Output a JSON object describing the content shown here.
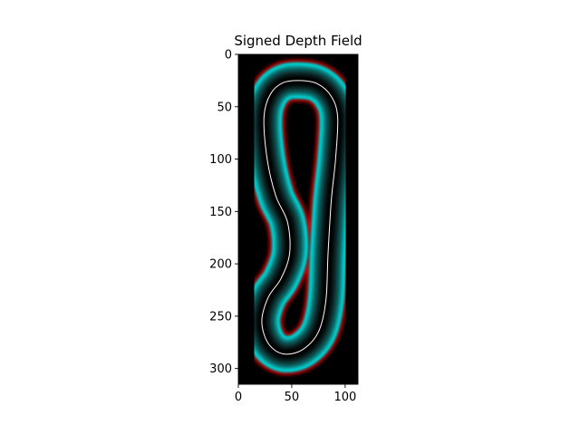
{
  "chart_data": {
    "type": "heatmap",
    "title": "Signed Depth Field",
    "xlabel": "",
    "ylabel": "",
    "xlim": [
      0,
      112
    ],
    "ylim": [
      315,
      0
    ],
    "y_axis_inverted": true,
    "x_ticks": [
      0,
      50,
      100
    ],
    "y_ticks": [
      0,
      50,
      100,
      150,
      200,
      250,
      300
    ],
    "grid": false,
    "legend": "none",
    "colors": {
      "background": "#000000",
      "outer_edge": "#ff0000",
      "band_edge": "#00e5e5",
      "band_inner": "#000000",
      "zero_contour": "#ffffff"
    },
    "contour_centerline": [
      [
        58,
        25
      ],
      [
        74,
        28
      ],
      [
        87,
        40
      ],
      [
        93,
        60
      ],
      [
        91,
        100
      ],
      [
        87,
        140
      ],
      [
        84,
        190
      ],
      [
        82,
        235
      ],
      [
        75,
        265
      ],
      [
        60,
        282
      ],
      [
        42,
        286
      ],
      [
        28,
        276
      ],
      [
        22,
        255
      ],
      [
        28,
        232
      ],
      [
        40,
        214
      ],
      [
        48,
        190
      ],
      [
        46,
        160
      ],
      [
        35,
        135
      ],
      [
        27,
        100
      ],
      [
        24,
        60
      ],
      [
        30,
        38
      ],
      [
        42,
        27
      ]
    ],
    "band_half_width": 17
  }
}
